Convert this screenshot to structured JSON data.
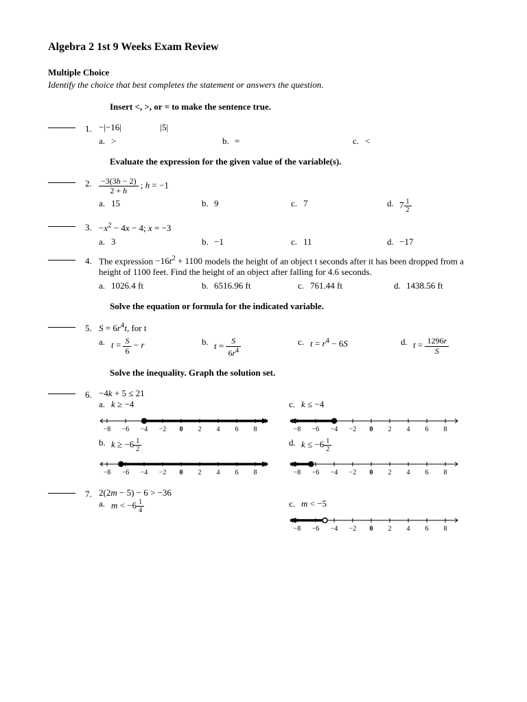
{
  "title": "Algebra 2 1st 9 Weeks Exam Review",
  "mc_head": "Multiple Choice",
  "mc_sub": "Identify the choice that best completes the statement or answers the question.",
  "ins1": "Insert <, >, or = to make the sentence true.",
  "ins2": "Evaluate the expression for the given value of the variable(s).",
  "ins3": "Solve the equation or formula for the indicated variable.",
  "ins4": "Solve the inequality. Graph the solution set.",
  "q1": {
    "n": "1.",
    "expr_l": "−|−16|",
    "expr_r": "|5|",
    "a": ">",
    "b": "=",
    "c": "<"
  },
  "q2": {
    "n": "2.",
    "a": "15",
    "b": "9",
    "c": "7"
  },
  "q3": {
    "n": "3.",
    "a": "3",
    "b": "−1",
    "c": "11",
    "d": "−17"
  },
  "q4": {
    "n": "4.",
    "text1": "The expression ",
    "text2": " models the height of an object t seconds after it has been dropped from a height of 1100 feet. Find the height of an object after falling for 4.6 seconds.",
    "a": "1026.4 ft",
    "b": "6516.96 ft",
    "c": "761.44 ft",
    "d": "1438.56 ft"
  },
  "q5": {
    "n": "5."
  },
  "q6": {
    "n": "6."
  },
  "q7": {
    "n": "7."
  },
  "labels": {
    "a": "a.",
    "b": "b.",
    "c": "c.",
    "d": "d."
  },
  "numberline": {
    "ticks": [
      "−8",
      "−6",
      "−4",
      "−2",
      "0",
      "2",
      "4",
      "6",
      "8"
    ],
    "bold0": "0"
  }
}
